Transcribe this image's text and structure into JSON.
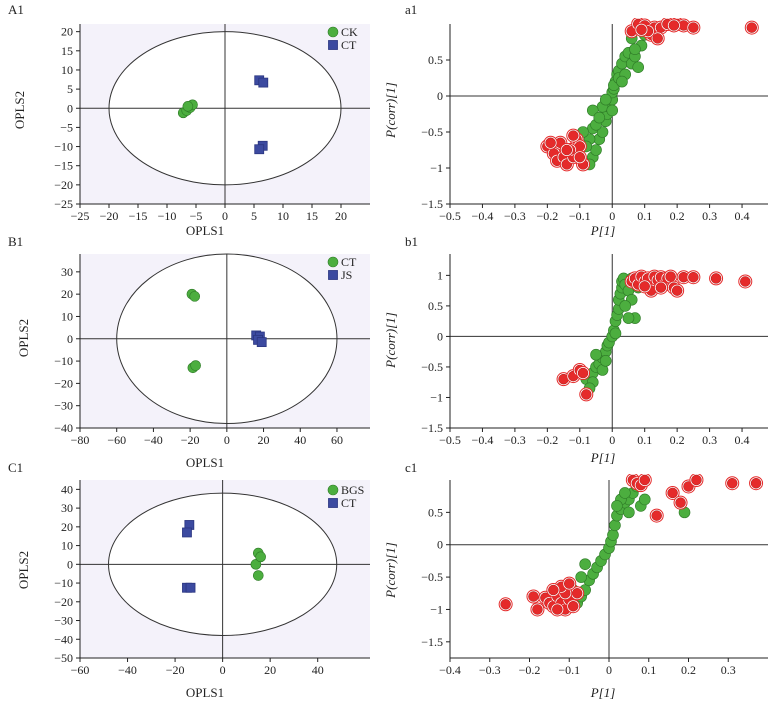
{
  "colors": {
    "green": "#4cae3f",
    "blue": "#3c4aa0",
    "red": "#e52a2a",
    "plot_bg": "#f4f2fa"
  },
  "chart_data": [
    {
      "panel_label": "A1",
      "type": "scatter",
      "xlabel": "OPLS1",
      "ylabel": "OPLS2",
      "xlim": [
        -25,
        25
      ],
      "ylim": [
        -25,
        22
      ],
      "xticks": [
        -25,
        -20,
        -15,
        -10,
        -5,
        0,
        5,
        10,
        15,
        20
      ],
      "yticks": [
        -25,
        -20,
        -15,
        -10,
        -5,
        0,
        5,
        10,
        15,
        20
      ],
      "ellipse": {
        "rx": 20,
        "ry": 20
      },
      "legend": [
        "CK",
        "CT"
      ],
      "legend_position": "top-right",
      "series": [
        {
          "name": "CK",
          "marker": "circle",
          "color": "green",
          "points": [
            [
              -7.2,
              -1.2
            ],
            [
              -6.6,
              -0.6
            ],
            [
              -6.0,
              0.2
            ],
            [
              -5.6,
              0.9
            ],
            [
              -6.4,
              0.5
            ]
          ]
        },
        {
          "name": "CT",
          "marker": "square",
          "color": "blue",
          "points": [
            [
              5.9,
              7.3
            ],
            [
              6.6,
              6.7
            ],
            [
              6.5,
              -9.8
            ],
            [
              5.9,
              -10.7
            ]
          ]
        }
      ]
    },
    {
      "panel_label": "a1",
      "type": "scatter",
      "xlabel": "P[1]",
      "ylabel": "P(corr)[1]",
      "xlim": [
        -0.5,
        0.48
      ],
      "ylim": [
        -1.5,
        1.0
      ],
      "xticks": [
        -0.5,
        -0.4,
        -0.3,
        -0.2,
        -0.1,
        0,
        0.1,
        0.2,
        0.3,
        0.4
      ],
      "yticks": [
        -1.5,
        -1.0,
        -0.5,
        0,
        0.5
      ],
      "series": [
        {
          "name": "",
          "marker": "circle",
          "color": "green",
          "points": [
            [
              -0.08,
              -0.95
            ],
            [
              -0.06,
              -0.85
            ],
            [
              -0.05,
              -0.75
            ],
            [
              -0.04,
              -0.6
            ],
            [
              -0.03,
              -0.5
            ],
            [
              -0.02,
              -0.35
            ],
            [
              -0.015,
              -0.25
            ],
            [
              -0.01,
              -0.15
            ],
            [
              0.0,
              -0.05
            ],
            [
              0.0,
              0.05
            ],
            [
              0.005,
              0.1
            ],
            [
              0.01,
              0.2
            ],
            [
              0.015,
              0.3
            ],
            [
              0.02,
              0.35
            ],
            [
              0.03,
              0.45
            ],
            [
              0.04,
              0.55
            ],
            [
              0.05,
              0.6
            ],
            [
              -0.07,
              -0.6
            ],
            [
              -0.06,
              -0.45
            ],
            [
              -0.05,
              -0.4
            ],
            [
              -0.07,
              -0.95
            ],
            [
              -0.08,
              -0.7
            ],
            [
              -0.03,
              -0.15
            ],
            [
              -0.02,
              -0.05
            ],
            [
              0.005,
              0.15
            ],
            [
              0.02,
              0.25
            ],
            [
              0.06,
              0.45
            ],
            [
              0.07,
              0.55
            ],
            [
              0.08,
              0.4
            ],
            [
              0.09,
              0.7
            ],
            [
              0.06,
              0.8
            ],
            [
              0.1,
              0.85
            ],
            [
              0.04,
              0.3
            ],
            [
              0.03,
              0.2
            ],
            [
              -0.06,
              -0.2
            ],
            [
              -0.04,
              -0.3
            ],
            [
              -0.09,
              -0.5
            ],
            [
              0.0,
              -0.2
            ],
            [
              0.07,
              0.65
            ]
          ]
        },
        {
          "name": "",
          "marker": "circle",
          "color": "red",
          "points": [
            [
              -0.2,
              -0.7
            ],
            [
              -0.18,
              -0.8
            ],
            [
              -0.17,
              -0.9
            ],
            [
              -0.15,
              -0.85
            ],
            [
              -0.14,
              -0.95
            ],
            [
              -0.12,
              -0.85
            ],
            [
              -0.11,
              -0.6
            ],
            [
              -0.1,
              -0.7
            ],
            [
              -0.09,
              -0.95
            ],
            [
              -0.13,
              -0.75
            ],
            [
              -0.16,
              -0.65
            ],
            [
              -0.1,
              -0.85
            ],
            [
              -0.12,
              -0.55
            ],
            [
              -0.14,
              -0.75
            ],
            [
              -0.19,
              -0.65
            ],
            [
              0.06,
              0.9
            ],
            [
              0.08,
              1.0
            ],
            [
              0.1,
              0.98
            ],
            [
              0.12,
              0.85
            ],
            [
              0.13,
              0.95
            ],
            [
              0.15,
              0.95
            ],
            [
              0.17,
              1.0
            ],
            [
              0.2,
              1.0
            ],
            [
              0.22,
              0.98
            ],
            [
              0.25,
              0.95
            ],
            [
              0.43,
              0.95
            ],
            [
              0.14,
              0.8
            ],
            [
              0.11,
              0.9
            ],
            [
              0.09,
              0.92
            ],
            [
              0.19,
              0.98
            ]
          ]
        }
      ]
    },
    {
      "panel_label": "B1",
      "type": "scatter",
      "xlabel": "OPLS1",
      "ylabel": "OPLS2",
      "xlim": [
        -80,
        78
      ],
      "ylim": [
        -40,
        38
      ],
      "xticks": [
        -80,
        -60,
        -40,
        -20,
        0,
        20,
        40,
        60
      ],
      "yticks": [
        -40,
        -30,
        -20,
        -10,
        0,
        10,
        20,
        30
      ],
      "ellipse": {
        "rx": 60,
        "ry": 38
      },
      "legend": [
        "CT",
        "JS"
      ],
      "legend_position": "top-right",
      "series": [
        {
          "name": "CT",
          "marker": "circle",
          "color": "green",
          "points": [
            [
              -19,
              20
            ],
            [
              -17.5,
              19
            ],
            [
              -18.5,
              -13
            ],
            [
              -17,
              -12
            ]
          ]
        },
        {
          "name": "JS",
          "marker": "square",
          "color": "blue",
          "points": [
            [
              16,
              1.5
            ],
            [
              18,
              1.0
            ],
            [
              17,
              -0.5
            ],
            [
              19,
              -1.5
            ]
          ]
        }
      ]
    },
    {
      "panel_label": "b1",
      "type": "scatter",
      "xlabel": "P[1]",
      "ylabel": "P(corr)[1]",
      "xlim": [
        -0.5,
        0.48
      ],
      "ylim": [
        -1.5,
        1.35
      ],
      "xticks": [
        -0.5,
        -0.4,
        -0.3,
        -0.2,
        -0.1,
        0,
        0.1,
        0.2,
        0.3,
        0.4
      ],
      "yticks": [
        -1.5,
        -1.0,
        -0.5,
        0,
        0.5,
        1.0
      ],
      "series": [
        {
          "name": "",
          "marker": "circle",
          "color": "green",
          "points": [
            [
              -0.08,
              -0.7
            ],
            [
              -0.06,
              -0.6
            ],
            [
              -0.05,
              -0.5
            ],
            [
              -0.04,
              -0.45
            ],
            [
              -0.03,
              -0.35
            ],
            [
              -0.02,
              -0.25
            ],
            [
              -0.015,
              -0.15
            ],
            [
              -0.01,
              -0.1
            ],
            [
              0.0,
              0.0
            ],
            [
              0.005,
              0.1
            ],
            [
              0.01,
              0.25
            ],
            [
              0.015,
              0.35
            ],
            [
              0.02,
              0.45
            ],
            [
              0.02,
              0.6
            ],
            [
              0.025,
              0.7
            ],
            [
              0.03,
              0.8
            ],
            [
              0.03,
              0.9
            ],
            [
              0.035,
              0.95
            ],
            [
              0.04,
              0.85
            ],
            [
              0.05,
              0.75
            ],
            [
              0.06,
              0.6
            ],
            [
              0.07,
              0.3
            ],
            [
              0.05,
              0.3
            ],
            [
              0.04,
              0.5
            ],
            [
              -0.06,
              -0.75
            ],
            [
              -0.07,
              -0.85
            ],
            [
              -0.05,
              -0.3
            ],
            [
              0.08,
              0.8
            ],
            [
              0.06,
              0.95
            ],
            [
              -0.03,
              -0.55
            ],
            [
              -0.02,
              -0.4
            ],
            [
              0.01,
              0.05
            ]
          ]
        },
        {
          "name": "",
          "marker": "circle",
          "color": "red",
          "points": [
            [
              -0.15,
              -0.7
            ],
            [
              -0.12,
              -0.65
            ],
            [
              -0.1,
              -0.55
            ],
            [
              -0.08,
              -0.95
            ],
            [
              -0.09,
              -0.6
            ],
            [
              0.06,
              0.9
            ],
            [
              0.07,
              0.95
            ],
            [
              0.08,
              0.85
            ],
            [
              0.09,
              0.98
            ],
            [
              0.1,
              0.9
            ],
            [
              0.11,
              0.95
            ],
            [
              0.12,
              0.8
            ],
            [
              0.13,
              0.98
            ],
            [
              0.14,
              0.92
            ],
            [
              0.15,
              0.97
            ],
            [
              0.16,
              0.85
            ],
            [
              0.17,
              0.95
            ],
            [
              0.18,
              0.98
            ],
            [
              0.19,
              0.8
            ],
            [
              0.2,
              0.75
            ],
            [
              0.22,
              0.97
            ],
            [
              0.25,
              0.97
            ],
            [
              0.32,
              0.95
            ],
            [
              0.41,
              0.9
            ],
            [
              0.12,
              0.75
            ],
            [
              0.1,
              0.82
            ],
            [
              0.15,
              0.8
            ]
          ]
        }
      ]
    },
    {
      "panel_label": "C1",
      "type": "scatter",
      "xlabel": "OPLS1",
      "ylabel": "OPLS2",
      "xlim": [
        -60,
        62
      ],
      "ylim": [
        -50,
        45
      ],
      "xticks": [
        -60,
        -40,
        -20,
        0,
        20,
        40
      ],
      "yticks": [
        -50,
        -40,
        -30,
        -20,
        -10,
        0,
        10,
        20,
        30,
        40
      ],
      "ellipse": {
        "rx": 48,
        "ry": 38
      },
      "legend": [
        "BGS",
        "CT"
      ],
      "legend_position": "top-right",
      "series": [
        {
          "name": "BGS",
          "marker": "circle",
          "color": "green",
          "points": [
            [
              15,
              6
            ],
            [
              14,
              0
            ],
            [
              15,
              -6
            ],
            [
              16,
              4
            ]
          ]
        },
        {
          "name": "CT",
          "marker": "square",
          "color": "blue",
          "points": [
            [
              -14,
              21
            ],
            [
              -15,
              17
            ],
            [
              -15,
              -12.5
            ],
            [
              -13.5,
              -12.5
            ]
          ]
        }
      ]
    },
    {
      "panel_label": "c1",
      "type": "scatter",
      "xlabel": "P[1]",
      "ylabel": "P(corr)[1]",
      "xlim": [
        -0.4,
        0.4
      ],
      "ylim": [
        -1.75,
        1.0
      ],
      "xticks": [
        -0.4,
        -0.3,
        -0.2,
        -0.1,
        0,
        0.1,
        0.2,
        0.3
      ],
      "yticks": [
        -1.5,
        -1.0,
        -0.5,
        0,
        0.5
      ],
      "series": [
        {
          "name": "",
          "marker": "circle",
          "color": "green",
          "points": [
            [
              -0.08,
              -0.9
            ],
            [
              -0.07,
              -0.8
            ],
            [
              -0.06,
              -0.7
            ],
            [
              -0.05,
              -0.55
            ],
            [
              -0.04,
              -0.45
            ],
            [
              -0.03,
              -0.35
            ],
            [
              -0.02,
              -0.25
            ],
            [
              -0.01,
              -0.15
            ],
            [
              0.0,
              -0.05
            ],
            [
              0.005,
              0.05
            ],
            [
              0.01,
              0.15
            ],
            [
              0.015,
              0.3
            ],
            [
              0.02,
              0.45
            ],
            [
              0.03,
              0.55
            ],
            [
              0.04,
              0.65
            ],
            [
              0.05,
              0.7
            ],
            [
              0.06,
              0.8
            ],
            [
              0.07,
              0.9
            ],
            [
              0.08,
              0.6
            ],
            [
              0.09,
              0.7
            ],
            [
              -0.07,
              -0.5
            ],
            [
              -0.06,
              -0.3
            ],
            [
              0.03,
              0.7
            ],
            [
              0.02,
              0.6
            ],
            [
              0.05,
              0.5
            ],
            [
              0.19,
              0.5
            ],
            [
              -0.09,
              -0.7
            ],
            [
              -0.1,
              -0.8
            ],
            [
              0.04,
              0.8
            ]
          ]
        },
        {
          "name": "",
          "marker": "circle",
          "color": "red",
          "points": [
            [
              -0.26,
              -0.92
            ],
            [
              -0.19,
              -0.8
            ],
            [
              -0.18,
              -1.0
            ],
            [
              -0.16,
              -0.82
            ],
            [
              -0.15,
              -0.9
            ],
            [
              -0.14,
              -0.95
            ],
            [
              -0.13,
              -0.8
            ],
            [
              -0.12,
              -0.9
            ],
            [
              -0.11,
              -1.0
            ],
            [
              -0.1,
              -0.85
            ],
            [
              -0.09,
              -0.95
            ],
            [
              -0.08,
              -0.75
            ],
            [
              -0.13,
              -1.0
            ],
            [
              -0.11,
              -0.75
            ],
            [
              -0.12,
              -0.65
            ],
            [
              0.06,
              1.0
            ],
            [
              0.07,
              0.95
            ],
            [
              0.08,
              0.92
            ],
            [
              0.09,
              1.0
            ],
            [
              0.12,
              0.45
            ],
            [
              0.16,
              0.8
            ],
            [
              0.18,
              0.65
            ],
            [
              0.2,
              0.9
            ],
            [
              0.22,
              1.0
            ],
            [
              0.31,
              0.95
            ],
            [
              0.37,
              0.95
            ],
            [
              -0.1,
              -0.6
            ],
            [
              -0.14,
              -0.7
            ]
          ]
        }
      ]
    }
  ]
}
